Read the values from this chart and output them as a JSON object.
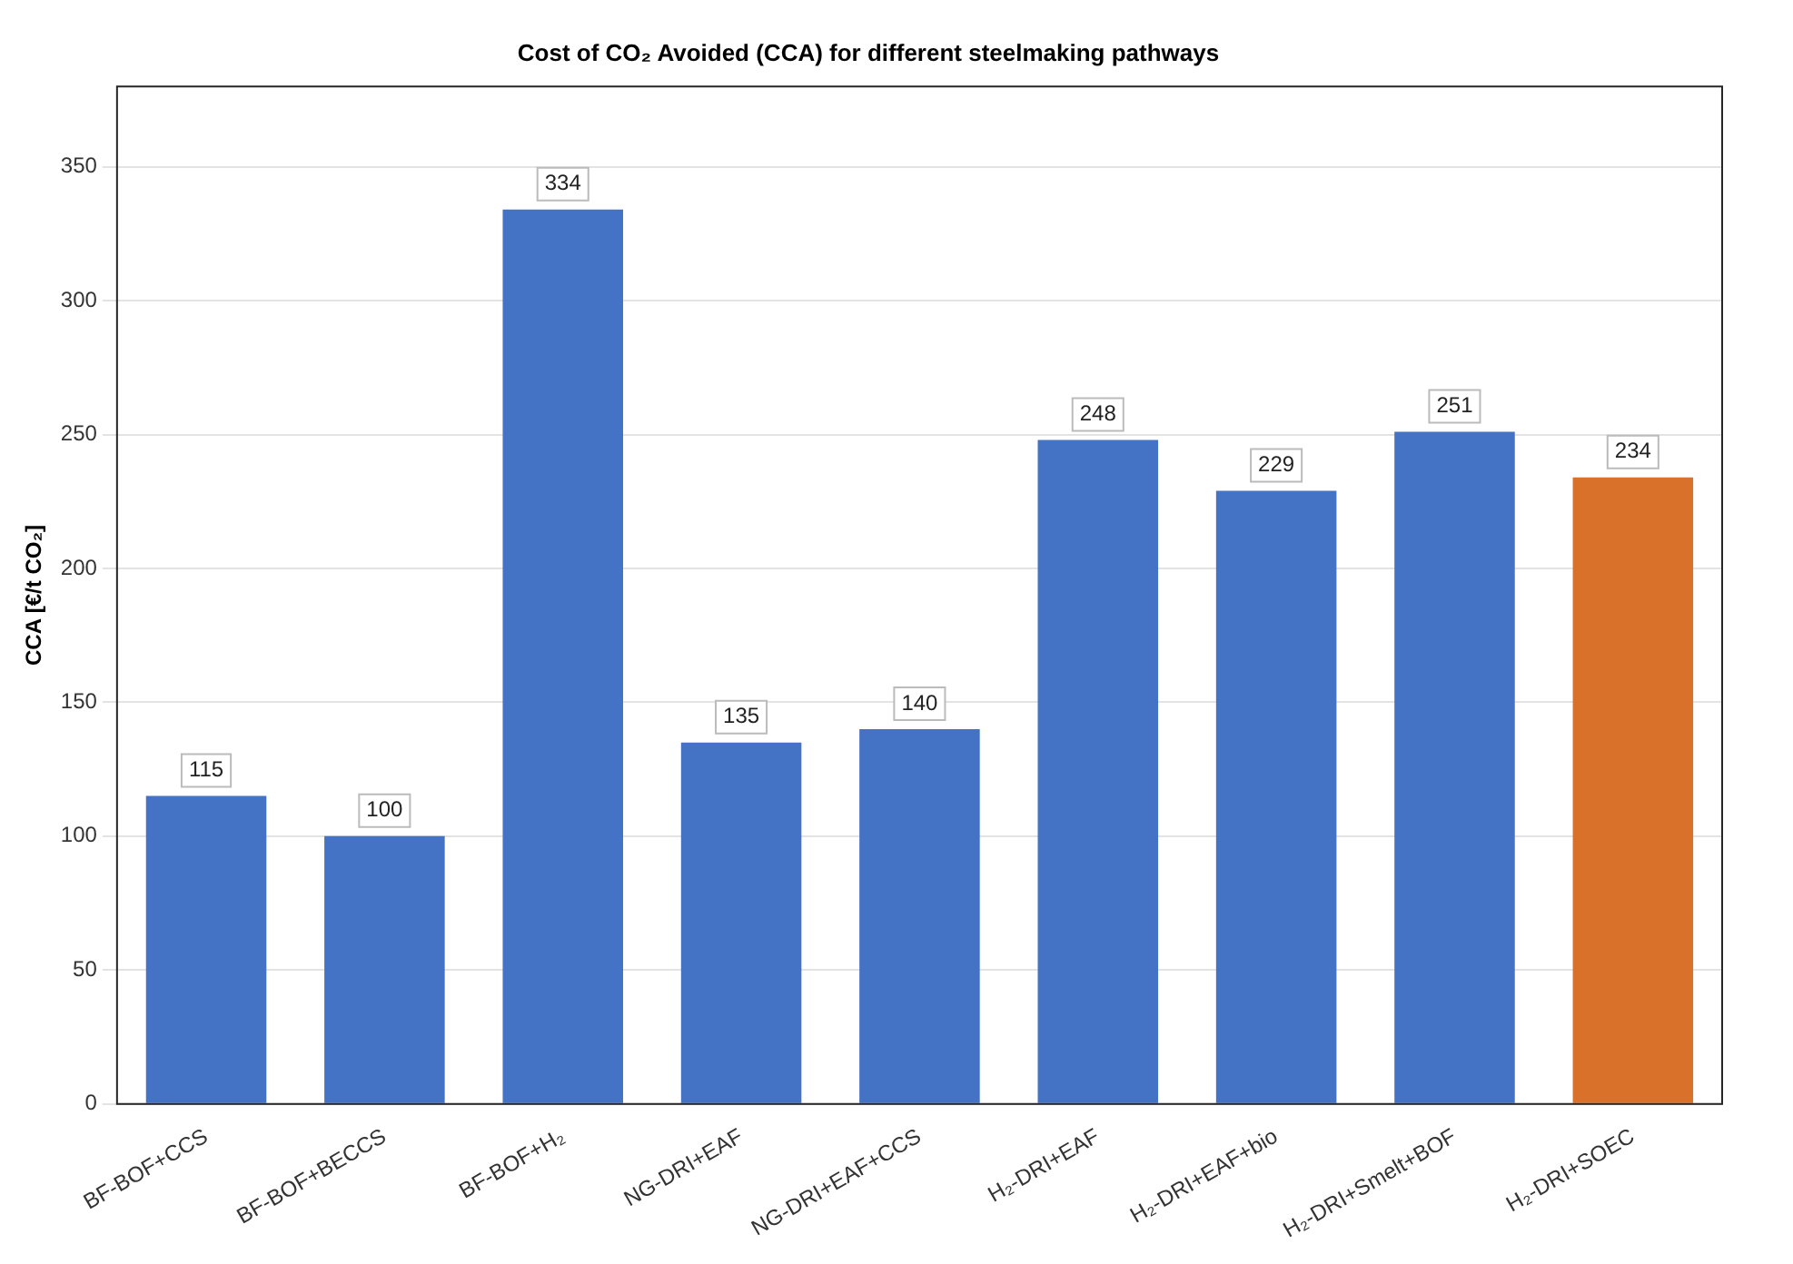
{
  "chart_data": {
    "type": "bar",
    "title": "Cost of CO₂ Avoided (CCA) for different steelmaking pathways",
    "ylabel": "CCA [€/t CO₂]",
    "categories": [
      "BF-BOF+CCS",
      "BF-BOF+BECCS",
      "BF-BOF+H₂",
      "NG-DRI+EAF",
      "NG-DRI+EAF+CCS",
      "H₂-DRI+EAF",
      "H₂-DRI+EAF+bio",
      "H₂-DRI+Smelt+BOF",
      "H₂-DRI+SOEC"
    ],
    "values": [
      115,
      100,
      334,
      135,
      140,
      248,
      229,
      251,
      234
    ],
    "colors": [
      "#4472c4",
      "#4472c4",
      "#4472c4",
      "#4472c4",
      "#4472c4",
      "#4472c4",
      "#4472c4",
      "#4472c4",
      "#d9712b"
    ],
    "ylim": [
      0,
      380
    ],
    "yticks": [
      0,
      50,
      100,
      150,
      200,
      250,
      300,
      350
    ],
    "grid": "y",
    "data_labels": true
  }
}
